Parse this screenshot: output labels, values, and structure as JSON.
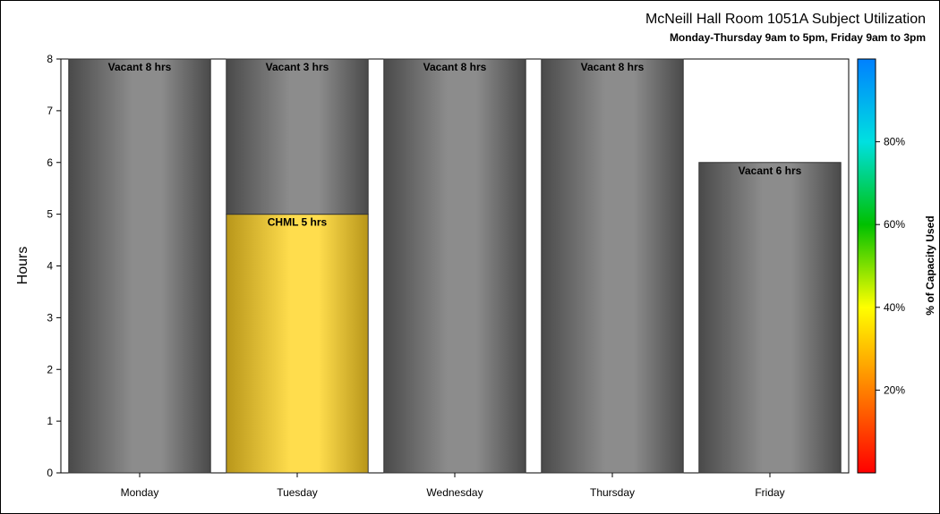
{
  "chart_data": {
    "type": "bar",
    "stacked": true,
    "title": "McNeill Hall Room 1051A Subject Utilization",
    "subtitle": "Monday-Thursday 9am to 5pm, Friday 9am to 3pm",
    "ylabel": "Hours",
    "xlabel": "",
    "ylim": [
      0,
      8
    ],
    "yticks": [
      0,
      1,
      2,
      3,
      4,
      5,
      6,
      7,
      8
    ],
    "grid": false,
    "categories": [
      "Monday",
      "Tuesday",
      "Wednesday",
      "Thursday",
      "Friday"
    ],
    "segments": [
      [
        {
          "label": "Vacant 8 hrs",
          "value": 8,
          "kind": "vacant"
        }
      ],
      [
        {
          "label": "CHML 5 hrs",
          "value": 5,
          "kind": "used"
        },
        {
          "label": "Vacant 3 hrs",
          "value": 3,
          "kind": "vacant"
        }
      ],
      [
        {
          "label": "Vacant 8 hrs",
          "value": 8,
          "kind": "vacant"
        }
      ],
      [
        {
          "label": "Vacant 8 hrs",
          "value": 8,
          "kind": "vacant"
        }
      ],
      [
        {
          "label": "Vacant 6 hrs",
          "value": 6,
          "kind": "vacant"
        }
      ]
    ],
    "colors": {
      "vacant_edge": "#4a4a4a",
      "vacant_center": "#8c8c8c",
      "used_edge": "#b8961a",
      "used_center": "#ffdd4d"
    },
    "colorbar": {
      "label": "% of Capacity Used",
      "ticks": [
        "20%",
        "40%",
        "60%",
        "80%"
      ],
      "tick_values": [
        20,
        40,
        60,
        80
      ],
      "range": [
        0,
        100
      ],
      "stops": [
        "#ff0000",
        "#ff8000",
        "#ffff00",
        "#00c000",
        "#00e0e0",
        "#0080ff"
      ]
    }
  }
}
